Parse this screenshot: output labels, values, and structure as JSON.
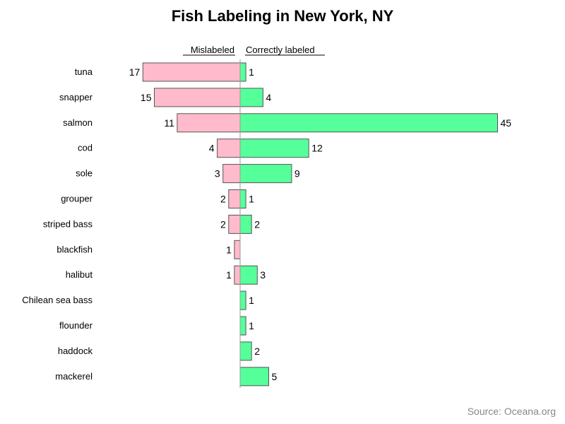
{
  "chart_data": {
    "type": "bar",
    "orientation": "horizontal-diverging",
    "title": "Fish Labeling in New York, NY",
    "categories": [
      "tuna",
      "snapper",
      "salmon",
      "cod",
      "sole",
      "grouper",
      "striped bass",
      "blackfish",
      "halibut",
      "Chilean sea bass",
      "flounder",
      "haddock",
      "mackerel"
    ],
    "series": [
      {
        "name": "Mislabeled",
        "direction": "left",
        "color": "#ffbbcc",
        "values": [
          17,
          15,
          11,
          4,
          3,
          2,
          2,
          1,
          1,
          null,
          null,
          null,
          null
        ]
      },
      {
        "name": "Correctly labeled",
        "direction": "right",
        "color": "#55ff99",
        "values": [
          1,
          4,
          45,
          12,
          9,
          1,
          2,
          null,
          3,
          1,
          1,
          2,
          5
        ]
      }
    ],
    "legend_placement": "top, above bars",
    "grid": false,
    "source": "Source: Oceana.org"
  }
}
